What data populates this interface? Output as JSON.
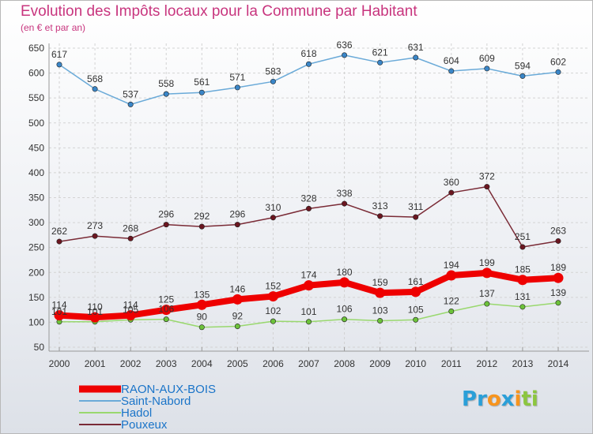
{
  "title": "Evolution des Impôts locaux pour la Commune par Habitant",
  "subtitle": "(en € et par an)",
  "logo": {
    "letters": [
      "P",
      "r",
      "o",
      "x",
      "i",
      "t",
      "i"
    ],
    "colors": [
      "#2a9fd8",
      "#2a9fd8",
      "#f7941d",
      "#2a9fd8",
      "#f7941d",
      "#8cc63f",
      "#8cc63f"
    ]
  },
  "chart_data": {
    "type": "line",
    "x": [
      "2000",
      "2001",
      "2002",
      "2003",
      "2004",
      "2005",
      "2006",
      "2007",
      "2008",
      "2009",
      "2010",
      "2011",
      "2012",
      "2013",
      "2014"
    ],
    "ylim": [
      50,
      650
    ],
    "yticks": [
      50,
      100,
      150,
      200,
      250,
      300,
      350,
      400,
      450,
      500,
      550,
      600,
      650
    ],
    "grid": true,
    "legend": "bottom-left",
    "series": [
      {
        "name": "Hadol",
        "color": "#99d86e",
        "marker": "#6cc23a",
        "values": [
          101,
          101,
          105,
          106,
          90,
          92,
          102,
          101,
          106,
          103,
          105,
          122,
          137,
          131,
          139
        ]
      },
      {
        "name": "Pouxeux",
        "color": "#7a2b36",
        "marker": "#6b1620",
        "values": [
          262,
          273,
          268,
          296,
          292,
          296,
          310,
          328,
          338,
          313,
          311,
          360,
          372,
          251,
          263
        ]
      },
      {
        "name": "Saint-Nabord",
        "color": "#6aaad8",
        "marker": "#3a86c8",
        "values": [
          617,
          568,
          537,
          558,
          561,
          571,
          583,
          618,
          636,
          621,
          631,
          604,
          609,
          594,
          602
        ]
      },
      {
        "name": "RAON-AUX-BOIS",
        "color": "#ee0000",
        "marker": "#ee0000",
        "values": [
          114,
          110,
          114,
          125,
          135,
          146,
          152,
          174,
          180,
          159,
          161,
          194,
          199,
          185,
          189
        ]
      }
    ],
    "legend_entries": [
      "RAON-AUX-BOIS",
      "Saint-Nabord",
      "Hadol",
      "Pouxeux"
    ]
  }
}
